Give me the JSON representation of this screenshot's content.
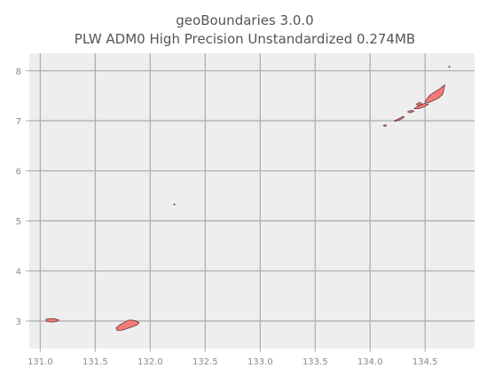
{
  "chart_data": {
    "type": "map",
    "title": "geoBoundaries 3.0.0",
    "subtitle": "PLW ADM0 High Precision Unstandardized 0.274MB",
    "xlabel": "",
    "ylabel": "",
    "xlim": [
      130.9,
      134.95
    ],
    "ylim": [
      2.45,
      8.35
    ],
    "x_ticks": [
      131.0,
      131.5,
      132.0,
      132.5,
      133.0,
      133.5,
      134.0,
      134.5
    ],
    "x_tick_labels": [
      "131.0",
      "131.5",
      "132.0",
      "132.5",
      "133.0",
      "133.5",
      "134.0",
      "134.5"
    ],
    "y_ticks": [
      3,
      4,
      5,
      6,
      7,
      8
    ],
    "y_tick_labels": [
      "3",
      "4",
      "5",
      "6",
      "7",
      "8"
    ],
    "grid": true,
    "colors": {
      "background": "#eeeeee",
      "grid": "#b0b0b0",
      "fill": "#f47a7a",
      "edge": "#6b3a3a"
    },
    "features": [
      {
        "type": "polygon",
        "coords": [
          [
            131.05,
            3.03
          ],
          [
            131.09,
            3.05
          ],
          [
            131.14,
            3.04
          ],
          [
            131.17,
            3.02
          ],
          [
            131.15,
            2.99
          ],
          [
            131.1,
            2.98
          ],
          [
            131.06,
            2.99
          ]
        ]
      },
      {
        "type": "polygon",
        "coords": [
          [
            131.69,
            2.86
          ],
          [
            131.72,
            2.92
          ],
          [
            131.76,
            2.97
          ],
          [
            131.81,
            3.02
          ],
          [
            131.86,
            3.01
          ],
          [
            131.9,
            2.97
          ],
          [
            131.88,
            2.92
          ],
          [
            131.82,
            2.87
          ],
          [
            131.75,
            2.82
          ],
          [
            131.7,
            2.81
          ]
        ]
      },
      {
        "type": "point",
        "coords": [
          132.22,
          5.33
        ]
      },
      {
        "type": "point",
        "coords": [
          134.72,
          8.08
        ]
      },
      {
        "type": "polygon",
        "coords": [
          [
            134.12,
            6.91
          ],
          [
            134.14,
            6.92
          ],
          [
            134.15,
            6.9
          ],
          [
            134.13,
            6.89
          ]
        ]
      },
      {
        "type": "polygon",
        "coords": [
          [
            134.22,
            7.0
          ],
          [
            134.26,
            7.04
          ],
          [
            134.3,
            7.09
          ],
          [
            134.31,
            7.07
          ],
          [
            134.27,
            7.02
          ],
          [
            134.23,
            6.99
          ]
        ]
      },
      {
        "type": "polygon",
        "coords": [
          [
            134.34,
            7.18
          ],
          [
            134.38,
            7.21
          ],
          [
            134.4,
            7.19
          ],
          [
            134.36,
            7.16
          ]
        ]
      },
      {
        "type": "polygon",
        "coords": [
          [
            134.41,
            7.26
          ],
          [
            134.46,
            7.32
          ],
          [
            134.5,
            7.35
          ],
          [
            134.53,
            7.33
          ],
          [
            134.49,
            7.28
          ],
          [
            134.44,
            7.24
          ],
          [
            134.4,
            7.24
          ]
        ]
      },
      {
        "type": "polygon",
        "coords": [
          [
            134.5,
            7.38
          ],
          [
            134.52,
            7.45
          ],
          [
            134.55,
            7.52
          ],
          [
            134.59,
            7.58
          ],
          [
            134.63,
            7.63
          ],
          [
            134.66,
            7.69
          ],
          [
            134.68,
            7.72
          ],
          [
            134.67,
            7.62
          ],
          [
            134.66,
            7.53
          ],
          [
            134.62,
            7.45
          ],
          [
            134.57,
            7.4
          ],
          [
            134.53,
            7.36
          ]
        ]
      },
      {
        "type": "polygon",
        "coords": [
          [
            134.44,
            7.3
          ],
          [
            134.47,
            7.34
          ],
          [
            134.45,
            7.37
          ],
          [
            134.42,
            7.33
          ]
        ]
      }
    ]
  }
}
